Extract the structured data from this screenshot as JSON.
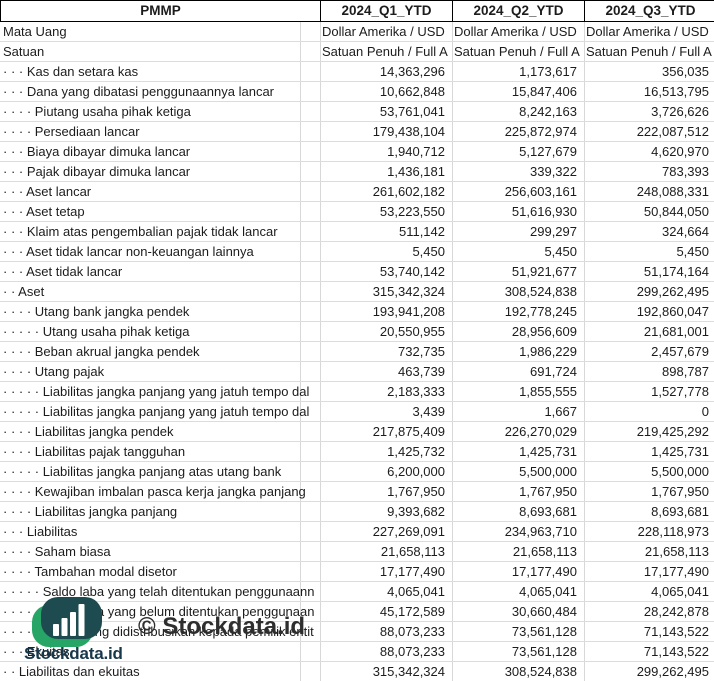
{
  "table": {
    "company": "PMMP",
    "columns": [
      "2024_Q1_YTD",
      "2024_Q2_YTD",
      "2024_Q3_YTD"
    ],
    "meta_rows": [
      {
        "label": "Mata Uang",
        "values": [
          "Dollar Amerika / USD",
          "Dollar Amerika / USD",
          "Dollar Amerika / USD"
        ]
      },
      {
        "label": "Satuan",
        "values": [
          "Satuan Penuh / Full A",
          "Satuan Penuh / Full A",
          "Satuan Penuh / Full A"
        ]
      }
    ],
    "rows": [
      {
        "label": "· · · Kas dan setara kas",
        "values": [
          "14,363,296",
          "1,173,617",
          "356,035"
        ]
      },
      {
        "label": "· · · Dana yang dibatasi penggunaannya lancar",
        "values": [
          "10,662,848",
          "15,847,406",
          "16,513,795"
        ]
      },
      {
        "label": "· · · · Piutang usaha pihak ketiga",
        "values": [
          "53,761,041",
          "8,242,163",
          "3,726,626"
        ]
      },
      {
        "label": "· · · · Persediaan lancar",
        "values": [
          "179,438,104",
          "225,872,974",
          "222,087,512"
        ]
      },
      {
        "label": "· · · Biaya dibayar dimuka lancar",
        "values": [
          "1,940,712",
          "5,127,679",
          "4,620,970"
        ]
      },
      {
        "label": "· · · Pajak dibayar dimuka lancar",
        "values": [
          "1,436,181",
          "339,322",
          "783,393"
        ]
      },
      {
        "label": "· · · Aset lancar",
        "values": [
          "261,602,182",
          "256,603,161",
          "248,088,331"
        ]
      },
      {
        "label": "· · · Aset tetap",
        "values": [
          "53,223,550",
          "51,616,930",
          "50,844,050"
        ]
      },
      {
        "label": "· · · Klaim atas pengembalian pajak tidak lancar",
        "values": [
          "511,142",
          "299,297",
          "324,664"
        ]
      },
      {
        "label": "· · · Aset tidak lancar non-keuangan lainnya",
        "values": [
          "5,450",
          "5,450",
          "5,450"
        ]
      },
      {
        "label": "· · · Aset tidak lancar",
        "values": [
          "53,740,142",
          "51,921,677",
          "51,174,164"
        ]
      },
      {
        "label": "· · Aset",
        "values": [
          "315,342,324",
          "308,524,838",
          "299,262,495"
        ]
      },
      {
        "label": "· · · · Utang bank jangka pendek",
        "values": [
          "193,941,208",
          "192,778,245",
          "192,860,047"
        ]
      },
      {
        "label": "· · · · · Utang usaha pihak ketiga",
        "values": [
          "20,550,955",
          "28,956,609",
          "21,681,001"
        ]
      },
      {
        "label": "· · · · Beban akrual jangka pendek",
        "values": [
          "732,735",
          "1,986,229",
          "2,457,679"
        ]
      },
      {
        "label": "· · · · Utang pajak",
        "values": [
          "463,739",
          "691,724",
          "898,787"
        ]
      },
      {
        "label": "· · · · · Liabilitas jangka panjang yang jatuh tempo dal",
        "values": [
          "2,183,333",
          "1,855,555",
          "1,527,778"
        ]
      },
      {
        "label": "· · · · · Liabilitas jangka panjang yang jatuh tempo dal",
        "values": [
          "3,439",
          "1,667",
          "0"
        ]
      },
      {
        "label": "· · · · Liabilitas jangka pendek",
        "values": [
          "217,875,409",
          "226,270,029",
          "219,425,292"
        ]
      },
      {
        "label": "· · · · Liabilitas pajak tangguhan",
        "values": [
          "1,425,732",
          "1,425,731",
          "1,425,731"
        ]
      },
      {
        "label": "· · · · · Liabilitas jangka panjang atas utang bank",
        "values": [
          "6,200,000",
          "5,500,000",
          "5,500,000"
        ]
      },
      {
        "label": "· · · · Kewajiban imbalan pasca kerja jangka panjang",
        "values": [
          "1,767,950",
          "1,767,950",
          "1,767,950"
        ]
      },
      {
        "label": "· · · · Liabilitas jangka panjang",
        "values": [
          "9,393,682",
          "8,693,681",
          "8,693,681"
        ]
      },
      {
        "label": "· · · Liabilitas",
        "values": [
          "227,269,091",
          "234,963,710",
          "228,118,973"
        ]
      },
      {
        "label": "· · · · Saham biasa",
        "values": [
          "21,658,113",
          "21,658,113",
          "21,658,113"
        ]
      },
      {
        "label": "· · · · Tambahan modal disetor",
        "values": [
          "17,177,490",
          "17,177,490",
          "17,177,490"
        ]
      },
      {
        "label": "· · · · · Saldo laba yang telah ditentukan penggunaann",
        "values": [
          "4,065,041",
          "4,065,041",
          "4,065,041"
        ]
      },
      {
        "label": "· · · · · Saldo laba yang belum ditentukan penggunaan",
        "values": [
          "45,172,589",
          "30,660,484",
          "28,242,878"
        ]
      },
      {
        "label": "· · · · Ekuitas yang didistribusikan kepada pemilik entit",
        "values": [
          "88,073,233",
          "73,561,128",
          "71,143,522"
        ]
      },
      {
        "label": "· · · Ekuitas",
        "values": [
          "88,073,233",
          "73,561,128",
          "71,143,522"
        ]
      },
      {
        "label": "· · Liabilitas dan ekuitas",
        "values": [
          "315,342,324",
          "308,524,838",
          "299,262,495"
        ]
      }
    ]
  },
  "branding": {
    "watermark": "© Stockdata.id",
    "logo_text": "Stockdata.id",
    "logo_icon": "bar-chart-icon",
    "logo_color_dark": "#1d4b50",
    "logo_color_green": "#27a566",
    "logo_text_color": "#17374a",
    "watermark_color": "#2e2e2e"
  },
  "grid": {
    "line_color": "#d8d8d8",
    "header_border_color": "#000000"
  }
}
